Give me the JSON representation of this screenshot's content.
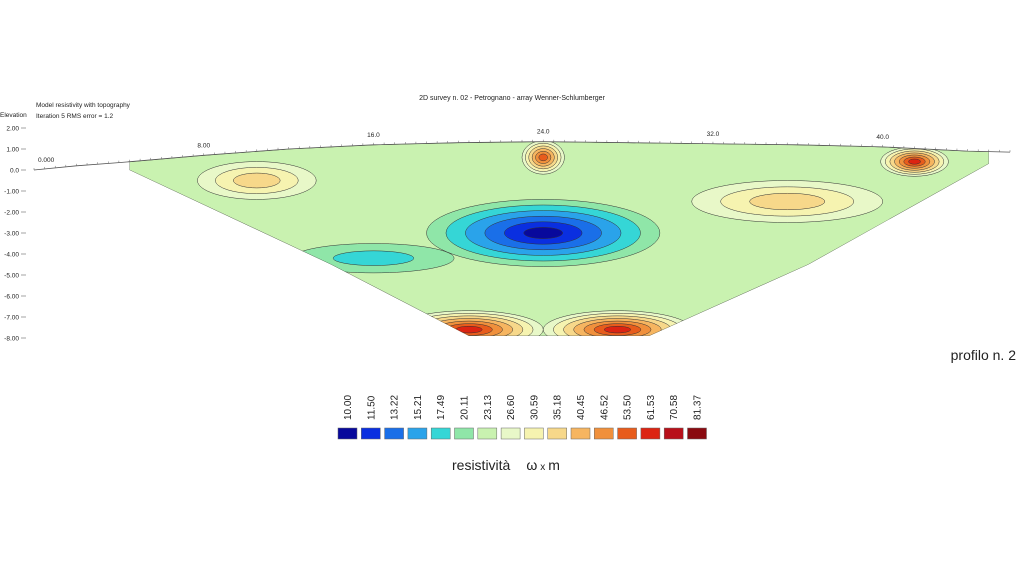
{
  "header": {
    "title": "2D survey n. 02 - Petrognano - array Wenner-Schlumberger",
    "left_label": "Elevation",
    "model_line": "Model resistivity with topography",
    "iteration_line": "Iteration 5 RMS error = 1.2"
  },
  "profile_label": "profilo n. 2",
  "unit_label": {
    "word": "resistività",
    "symbol": "ω",
    "times": "x",
    "unit": "m"
  },
  "chart_data": {
    "type": "heatmap",
    "title": "2D survey n. 02 - Petrognano - array Wenner-Schlumberger",
    "ylabel": "Elevation",
    "x_ticks": [
      {
        "value": 0,
        "label": "0.000"
      },
      {
        "value": 8,
        "label": "8.00"
      },
      {
        "value": 16,
        "label": "16.0"
      },
      {
        "value": 24,
        "label": "24.0"
      },
      {
        "value": 32,
        "label": "32.0"
      },
      {
        "value": 40,
        "label": "40.0"
      }
    ],
    "xlim": [
      0,
      46
    ],
    "ylim": [
      -8,
      2
    ],
    "y_ticks": [
      "2.00",
      "1.00",
      "0.0",
      "-1.00",
      "-2.00",
      "-3.00",
      "-4.00",
      "-5.00",
      "-6.00",
      "-7.00",
      "-8.00"
    ],
    "topography": [
      [
        0,
        0
      ],
      [
        2,
        0.2
      ],
      [
        4,
        0.35
      ],
      [
        8,
        0.7
      ],
      [
        12,
        1.0
      ],
      [
        16,
        1.2
      ],
      [
        20,
        1.3
      ],
      [
        24,
        1.35
      ],
      [
        28,
        1.3
      ],
      [
        32,
        1.25
      ],
      [
        36,
        1.2
      ],
      [
        40,
        1.1
      ],
      [
        44,
        0.9
      ],
      [
        46,
        0.85
      ]
    ],
    "section_bottom": [
      [
        4.5,
        0.0
      ],
      [
        14,
        -4.5
      ],
      [
        20.5,
        -7.9
      ],
      [
        29,
        -7.9
      ],
      [
        36.5,
        -4.5
      ],
      [
        45,
        0.3
      ]
    ],
    "color_scale": {
      "values": [
        "10.00",
        "11.50",
        "13.22",
        "15.21",
        "17.49",
        "20.11",
        "23.13",
        "26.60",
        "30.59",
        "35.18",
        "40.45",
        "46.52",
        "53.50",
        "61.53",
        "70.58",
        "81.37"
      ],
      "colors": [
        "#08099c",
        "#0a2fe0",
        "#1a6fe8",
        "#2aa3ea",
        "#35d6d6",
        "#8fe6a8",
        "#c9f2b0",
        "#e8f8c8",
        "#f6f3b0",
        "#f7d88a",
        "#f6b560",
        "#f0903c",
        "#e85c1c",
        "#dc2412",
        "#b8101a",
        "#8a0a10"
      ]
    },
    "anomalies": [
      {
        "type": "low",
        "x": 24,
        "y": -3.0,
        "rx": 5.5,
        "ry": 1.6,
        "level_index": 0
      },
      {
        "type": "high",
        "x": 20.5,
        "y": -7.6,
        "rx": 3.5,
        "ry": 0.9,
        "level_index": 13
      },
      {
        "type": "high",
        "x": 27.5,
        "y": -7.6,
        "rx": 3.5,
        "ry": 0.9,
        "level_index": 13
      },
      {
        "type": "high",
        "x": 24,
        "y": 0.6,
        "rx": 1.0,
        "ry": 0.8,
        "level_index": 12
      },
      {
        "type": "high",
        "x": 41.5,
        "y": 0.4,
        "rx": 1.6,
        "ry": 0.7,
        "level_index": 13
      },
      {
        "type": "medium",
        "x": 35.5,
        "y": -1.5,
        "rx": 4.5,
        "ry": 1.0,
        "level_index": 9
      },
      {
        "type": "medium",
        "x": 10.5,
        "y": -0.5,
        "rx": 2.8,
        "ry": 0.9,
        "level_index": 9
      },
      {
        "type": "low",
        "x": 16,
        "y": -4.2,
        "rx": 3.8,
        "ry": 0.7,
        "level_index": 4
      }
    ]
  }
}
